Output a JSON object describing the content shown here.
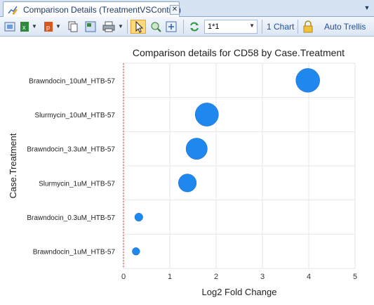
{
  "tab": {
    "title": "Comparison Details (TreatmentVSControl)",
    "close_glyph": "✕",
    "menu_glyph": "▼"
  },
  "toolbar": {
    "layout_select_value": "1*1",
    "chart_count_label": "1 Chart",
    "auto_trellis_label": "Auto Trellis"
  },
  "colors": {
    "bubble": "#1e88ee",
    "bubble_stroke": "#1565c0",
    "grid": "#e6e6e6",
    "zero_line": "#cc3333"
  },
  "chart_data": {
    "type": "scatter",
    "title": "Comparison details for CD58 by Case.Treatment",
    "xlabel": "Log2 Fold Change",
    "ylabel": "Case.Treatment",
    "xlim": [
      0,
      5
    ],
    "xticks": [
      "0",
      "1",
      "2",
      "3",
      "4",
      "5"
    ],
    "grid": true,
    "categories": [
      "Brawndocin_10uM_HTB-57",
      "Slurmycin_10uM_HTB-57",
      "Brawndocin_3.3uM_HTB-57",
      "Slurmycin_1uM_HTB-57",
      "Brawndocin_0.3uM_HTB-57",
      "Brawndocin_1uM_HTB-57"
    ],
    "points": [
      {
        "category": "Brawndocin_10uM_HTB-57",
        "x": 3.98,
        "size": 1.0
      },
      {
        "category": "Slurmycin_10uM_HTB-57",
        "x": 1.8,
        "size": 0.97
      },
      {
        "category": "Brawndocin_3.3uM_HTB-57",
        "x": 1.58,
        "size": 0.87
      },
      {
        "category": "Slurmycin_1uM_HTB-57",
        "x": 1.38,
        "size": 0.7
      },
      {
        "category": "Brawndocin_0.3uM_HTB-57",
        "x": 0.33,
        "size": 0.2
      },
      {
        "category": "Brawndocin_1uM_HTB-57",
        "x": 0.27,
        "size": 0.17
      }
    ]
  }
}
